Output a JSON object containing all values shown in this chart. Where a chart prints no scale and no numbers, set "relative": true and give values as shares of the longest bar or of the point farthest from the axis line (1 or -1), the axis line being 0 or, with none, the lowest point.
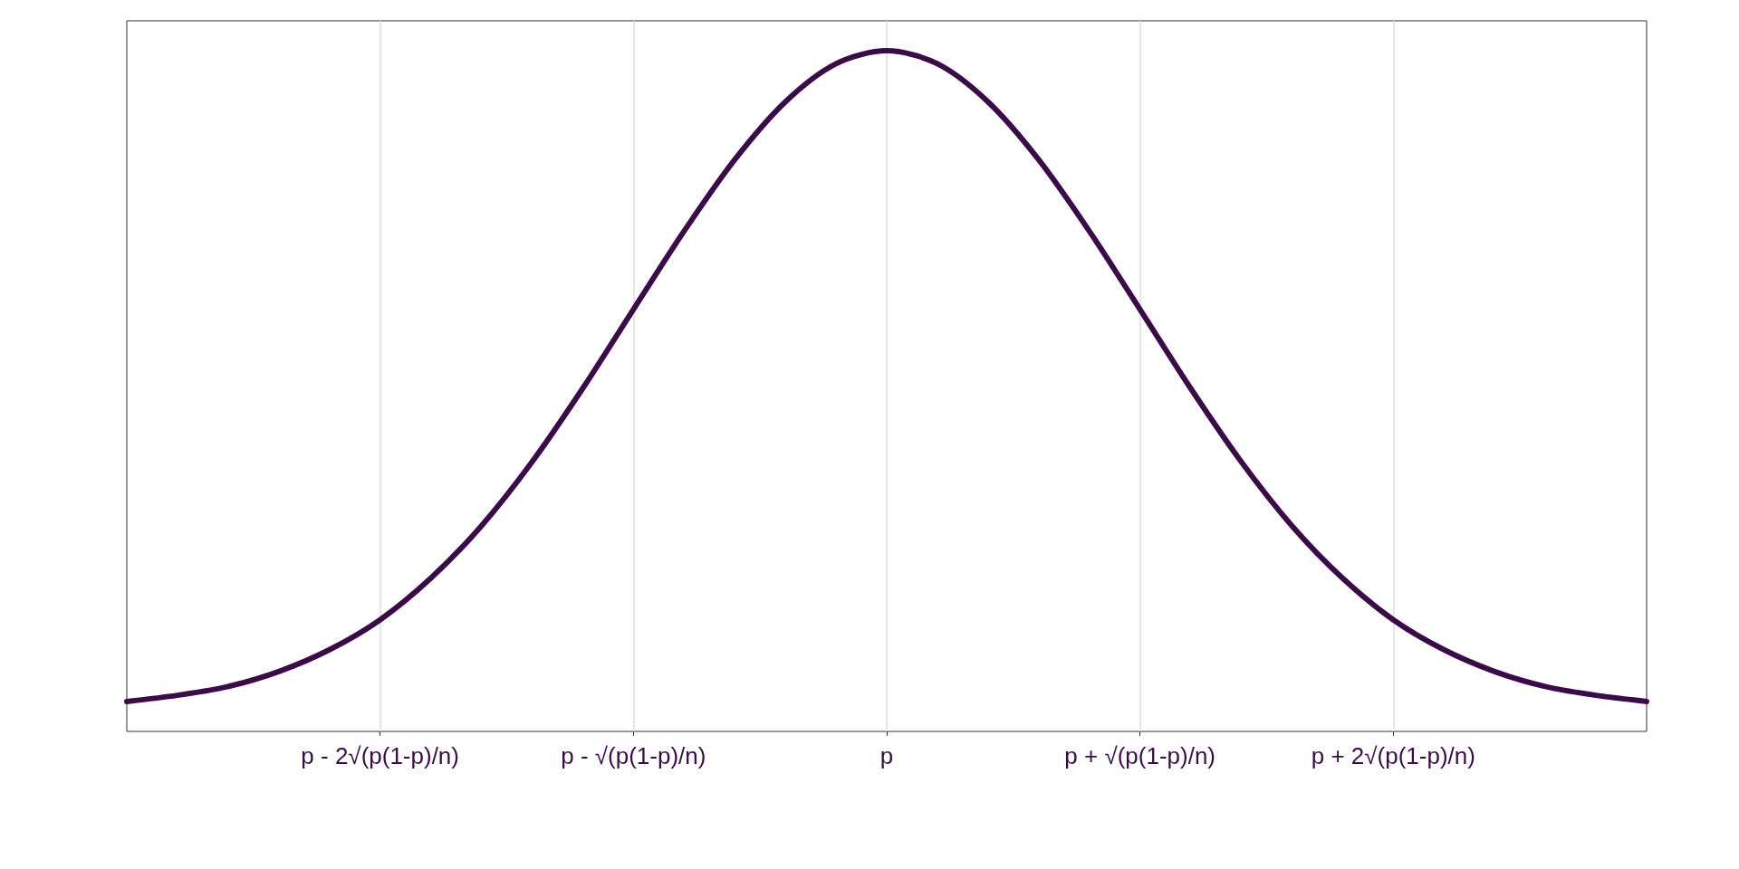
{
  "chart_data": {
    "type": "line",
    "relative": true,
    "categories": [
      null,
      null,
      null,
      null,
      null,
      "p - 2√(p(1-p)/n)",
      null,
      null,
      null,
      null,
      "p - √(p(1-p)/n)",
      null,
      null,
      null,
      null,
      "p",
      null,
      null,
      null,
      null,
      "p + √(p(1-p)/n)",
      null,
      null,
      null,
      null,
      "p + 2√(p(1-p)/n)",
      null,
      null,
      null,
      null,
      null
    ],
    "series": [
      {
        "color": "#3b0b47",
        "values": [
          0.044,
          0.053,
          0.066,
          0.088,
          0.12,
          0.164,
          0.225,
          0.302,
          0.396,
          0.504,
          0.62,
          0.735,
          0.84,
          0.925,
          0.981,
          1,
          0.981,
          0.925,
          0.84,
          0.735,
          0.62,
          0.504,
          0.396,
          0.302,
          0.225,
          0.164,
          0.12,
          0.088,
          0.066,
          0.053,
          0.044
        ]
      }
    ],
    "grid": "x",
    "marker": "none",
    "line_style": "solid"
  }
}
